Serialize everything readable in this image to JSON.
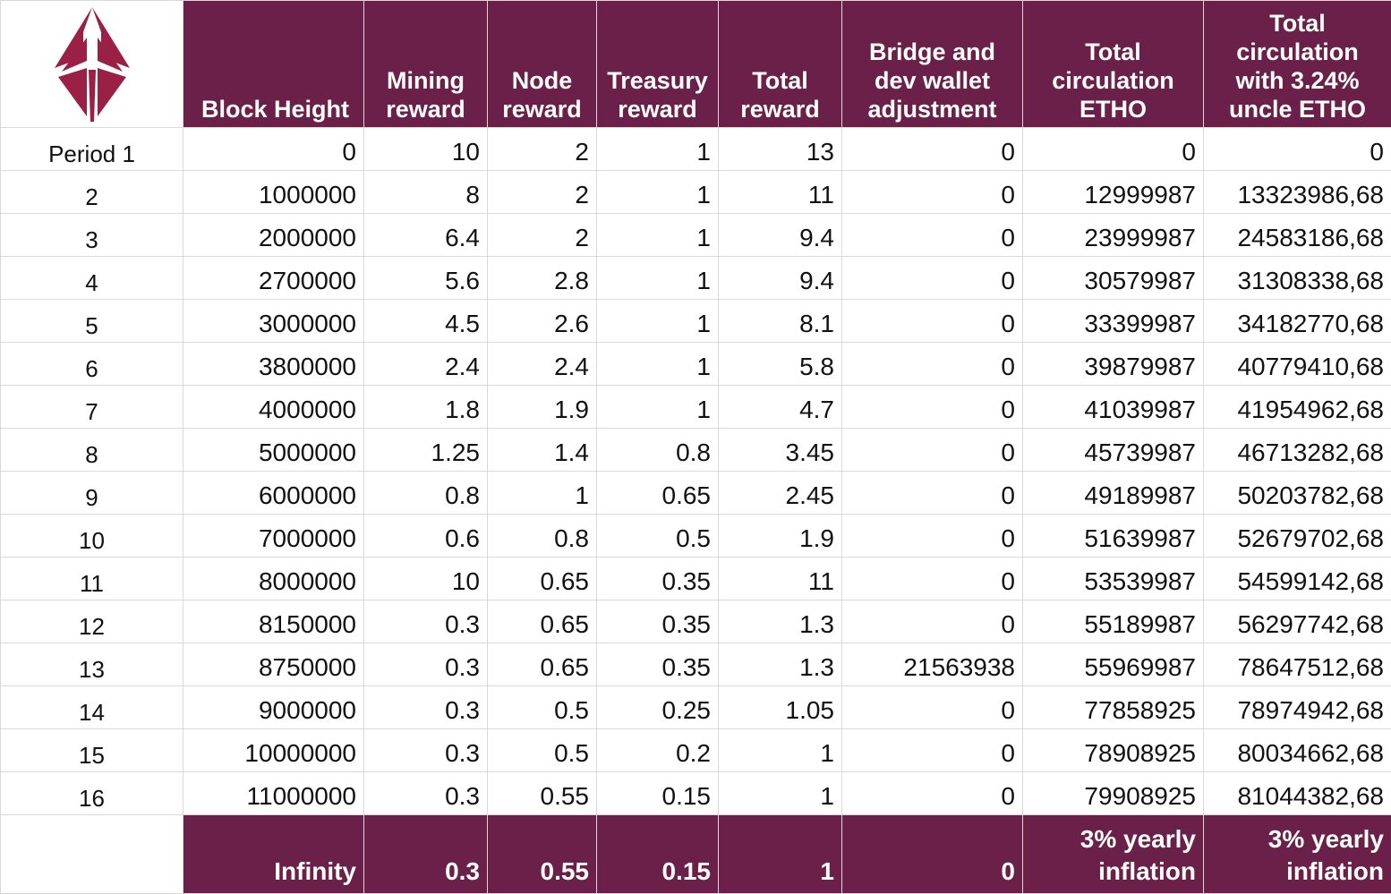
{
  "logo": {
    "name": "ether-1-logo",
    "color": "#9b2046"
  },
  "colors": {
    "header_bg": "#6a2048",
    "header_text": "#ffffff",
    "grid": "#d9d9d9"
  },
  "header": {
    "block_height": "Block Height",
    "mining_reward": "Mining reward",
    "node_reward": "Node reward",
    "treasury_reward": "Treasury reward",
    "total_reward": "Total reward",
    "bridge": "Bridge and dev wallet adjustment",
    "total_circulation": "Total circulation ETHO",
    "total_circulation_uncle": "Total circulation with 3.24% uncle ETHO"
  },
  "rows": [
    [
      "Period 1",
      "0",
      "10",
      "2",
      "1",
      "13",
      "0",
      "0",
      "0"
    ],
    [
      "2",
      "1000000",
      "8",
      "2",
      "1",
      "11",
      "0",
      "12999987",
      "13323986,68"
    ],
    [
      "3",
      "2000000",
      "6.4",
      "2",
      "1",
      "9.4",
      "0",
      "23999987",
      "24583186,68"
    ],
    [
      "4",
      "2700000",
      "5.6",
      "2.8",
      "1",
      "9.4",
      "0",
      "30579987",
      "31308338,68"
    ],
    [
      "5",
      "3000000",
      "4.5",
      "2.6",
      "1",
      "8.1",
      "0",
      "33399987",
      "34182770,68"
    ],
    [
      "6",
      "3800000",
      "2.4",
      "2.4",
      "1",
      "5.8",
      "0",
      "39879987",
      "40779410,68"
    ],
    [
      "7",
      "4000000",
      "1.8",
      "1.9",
      "1",
      "4.7",
      "0",
      "41039987",
      "41954962,68"
    ],
    [
      "8",
      "5000000",
      "1.25",
      "1.4",
      "0.8",
      "3.45",
      "0",
      "45739987",
      "46713282,68"
    ],
    [
      "9",
      "6000000",
      "0.8",
      "1",
      "0.65",
      "2.45",
      "0",
      "49189987",
      "50203782,68"
    ],
    [
      "10",
      "7000000",
      "0.6",
      "0.8",
      "0.5",
      "1.9",
      "0",
      "51639987",
      "52679702,68"
    ],
    [
      "11",
      "8000000",
      "10",
      "0.65",
      "0.35",
      "11",
      "0",
      "53539987",
      "54599142,68"
    ],
    [
      "12",
      "8150000",
      "0.3",
      "0.65",
      "0.35",
      "1.3",
      "0",
      "55189987",
      "56297742,68"
    ],
    [
      "13",
      "8750000",
      "0.3",
      "0.65",
      "0.35",
      "1.3",
      "21563938",
      "55969987",
      "78647512,68"
    ],
    [
      "14",
      "9000000",
      "0.3",
      "0.5",
      "0.25",
      "1.05",
      "0",
      "77858925",
      "78974942,68"
    ],
    [
      "15",
      "10000000",
      "0.3",
      "0.5",
      "0.2",
      "1",
      "0",
      "78908925",
      "80034662,68"
    ],
    [
      "16",
      "11000000",
      "0.3",
      "0.55",
      "0.15",
      "1",
      "0",
      "79908925",
      "81044382,68"
    ]
  ],
  "footer": {
    "block_height": "Infinity",
    "mining_reward": "0.3",
    "node_reward": "0.55",
    "treasury_reward": "0.15",
    "total_reward": "1",
    "bridge": "0",
    "total_circulation": "3% yearly inflation",
    "total_circulation_uncle": "3% yearly inflation"
  }
}
